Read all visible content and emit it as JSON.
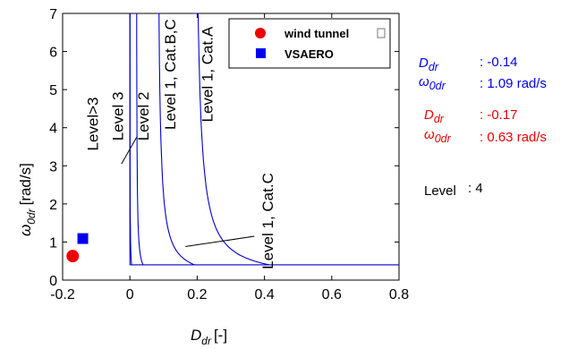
{
  "chart_data": {
    "type": "scatter",
    "xlabel_main": "D",
    "xlabel_sub": "dr",
    "xlabel_unit": "[-]",
    "ylabel_main": "ω",
    "ylabel_sub": "0dr",
    "ylabel_unit": "[rad/s]",
    "xlim": [
      -0.2,
      0.8
    ],
    "ylim": [
      0,
      7
    ],
    "xticks": [
      "-0.2",
      "0",
      "0.2",
      "0.4",
      "0.6",
      "0.8"
    ],
    "xtick_values": [
      -0.2,
      0,
      0.2,
      0.4,
      0.6,
      0.8
    ],
    "yticks": [
      "0",
      "1",
      "2",
      "3",
      "4",
      "5",
      "6",
      "7"
    ],
    "ytick_values": [
      0,
      1,
      2,
      3,
      4,
      5,
      6,
      7
    ],
    "series": [
      {
        "name": "wind tunnel",
        "marker": "circle",
        "color": "#ee0000",
        "x": [
          -0.17
        ],
        "y": [
          0.63
        ]
      },
      {
        "name": "VSAERO",
        "marker": "square",
        "color": "#0000ee",
        "x": [
          -0.14
        ],
        "y": [
          1.09
        ]
      }
    ],
    "boundaries": [
      {
        "asymptote": 0.0,
        "k": 0.002,
        "ymin": 0.4,
        "xend": 0.8,
        "color": "#0000cc"
      },
      {
        "asymptote": 0.019,
        "k": 0.008,
        "ymin": 0.4,
        "xend": 0.8,
        "color": "#0000cc"
      },
      {
        "asymptote": 0.08,
        "k": 0.045,
        "ymin": 0.4,
        "xend": 0.8,
        "color": "#0000cc"
      },
      {
        "asymptote": 0.19,
        "k": 0.09,
        "ymin": 0.4,
        "xend": 0.8,
        "color": "#0000cc"
      }
    ],
    "floor": {
      "y": 0.4,
      "x0": 0.0,
      "x1": 0.8
    },
    "level_labels": [
      {
        "text": "Level>3",
        "x": -0.095,
        "y": 4.1
      },
      {
        "text": "Level 3",
        "x": -0.02,
        "y": 4.3
      },
      {
        "text": "Level 2",
        "x": 0.055,
        "y": 4.3
      },
      {
        "text": "Level 1, Cat.B,C",
        "x": 0.135,
        "y": 5.4
      },
      {
        "text": "Level 1, Cat.A",
        "x": 0.245,
        "y": 5.4
      },
      {
        "text": "Level 1, Cat.C",
        "x": 0.425,
        "y": 1.55
      }
    ],
    "leader_lines": [
      {
        "x1": -0.025,
        "y1": 3.05,
        "x2": 0.02,
        "y2": 3.75
      },
      {
        "x1": 0.165,
        "y1": 0.88,
        "x2": 0.37,
        "y2": 1.15
      }
    ]
  },
  "results": {
    "vsaero": {
      "d_label": "D",
      "d_sub": "dr",
      "d_value": ": -0.14",
      "w_label": "ω",
      "w_sub": "0dr",
      "w_value": ": 1.09 rad/s"
    },
    "wind": {
      "d_label": "D",
      "d_sub": "dr",
      "d_value": ": -0.17",
      "w_label": "ω",
      "w_sub": "0dr",
      "w_value": ": 0.63 rad/s"
    },
    "level_label": "Level",
    "level_value": ": 4"
  }
}
